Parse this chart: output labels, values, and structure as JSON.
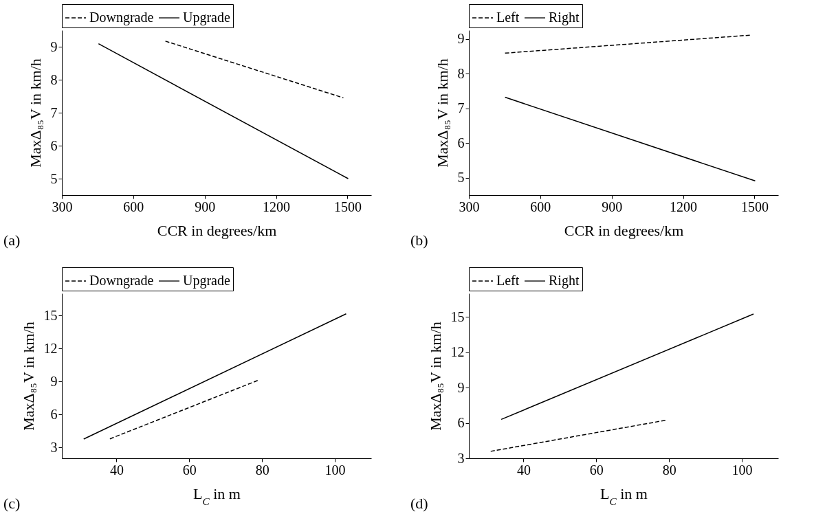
{
  "chart_data": [
    {
      "type": "line",
      "xlabel": "CCR in degrees/km",
      "ylabel": "MaxΔ₈₅V in km/h",
      "xlim": [
        300,
        1600
      ],
      "ylim": [
        4.5,
        9.5
      ],
      "xticks": [
        300,
        600,
        900,
        1200,
        1500
      ],
      "yticks": [
        5,
        6,
        7,
        8,
        9
      ],
      "grid": false,
      "legend": "top",
      "annotations": [
        "(a)"
      ],
      "series": [
        {
          "name": "Downgrade",
          "color": "#000000",
          "line_style": "dashed",
          "x": [
            735,
            1483
          ],
          "values": [
            9.17,
            7.45
          ]
        },
        {
          "name": "Upgrade",
          "color": "#000000",
          "line_style": "solid",
          "x": [
            454,
            1503
          ],
          "values": [
            9.09,
            5.0
          ]
        }
      ]
    },
    {
      "type": "line",
      "xlabel": "CCR in degrees/km",
      "ylabel": "MaxΔ₈₅V in km/h",
      "xlim": [
        300,
        1600
      ],
      "ylim": [
        4.5,
        9.25
      ],
      "xticks": [
        300,
        600,
        900,
        1200,
        1500
      ],
      "yticks": [
        5,
        6,
        7,
        8,
        9
      ],
      "grid": false,
      "legend": "top",
      "annotations": [
        "(b)"
      ],
      "series": [
        {
          "name": "Left",
          "color": "#000000",
          "line_style": "dashed",
          "x": [
            452,
            1486
          ],
          "values": [
            8.59,
            9.11
          ]
        },
        {
          "name": "Right",
          "color": "#000000",
          "line_style": "solid",
          "x": [
            452,
            1503
          ],
          "values": [
            7.32,
            4.91
          ]
        }
      ]
    },
    {
      "type": "line",
      "xlabel": "L$_{C}$ in m",
      "ylabel": "MaxΔ₈₅V in km/h",
      "xlim": [
        25,
        110
      ],
      "ylim": [
        2,
        17
      ],
      "xticks": [
        40,
        60,
        80,
        100
      ],
      "yticks": [
        3,
        6,
        9,
        12,
        15
      ],
      "grid": false,
      "legend": "top",
      "annotations": [
        "(c)"
      ],
      "series": [
        {
          "name": "Downgrade",
          "color": "#000000",
          "line_style": "dashed",
          "x": [
            38.2,
            78.9
          ],
          "values": [
            3.77,
            9.09
          ]
        },
        {
          "name": "Upgrade",
          "color": "#000000",
          "line_style": "solid",
          "x": [
            31,
            103.1
          ],
          "values": [
            3.75,
            15.14
          ]
        }
      ]
    },
    {
      "type": "line",
      "xlabel": "L$_{C}$ in m",
      "ylabel": "MaxΔ₈₅V in km/h",
      "xlim": [
        25,
        110
      ],
      "ylim": [
        3,
        17
      ],
      "xticks": [
        40,
        60,
        80,
        100
      ],
      "yticks": [
        3,
        6,
        9,
        12,
        15
      ],
      "grid": false,
      "legend": "top",
      "annotations": [
        "(d)"
      ],
      "series": [
        {
          "name": "Left",
          "color": "#000000",
          "line_style": "dashed",
          "x": [
            31,
            79.1
          ],
          "values": [
            3.59,
            6.23
          ]
        },
        {
          "name": "Right",
          "color": "#000000",
          "line_style": "solid",
          "x": [
            33.9,
            103.2
          ],
          "values": [
            6.3,
            15.25
          ]
        }
      ]
    }
  ]
}
